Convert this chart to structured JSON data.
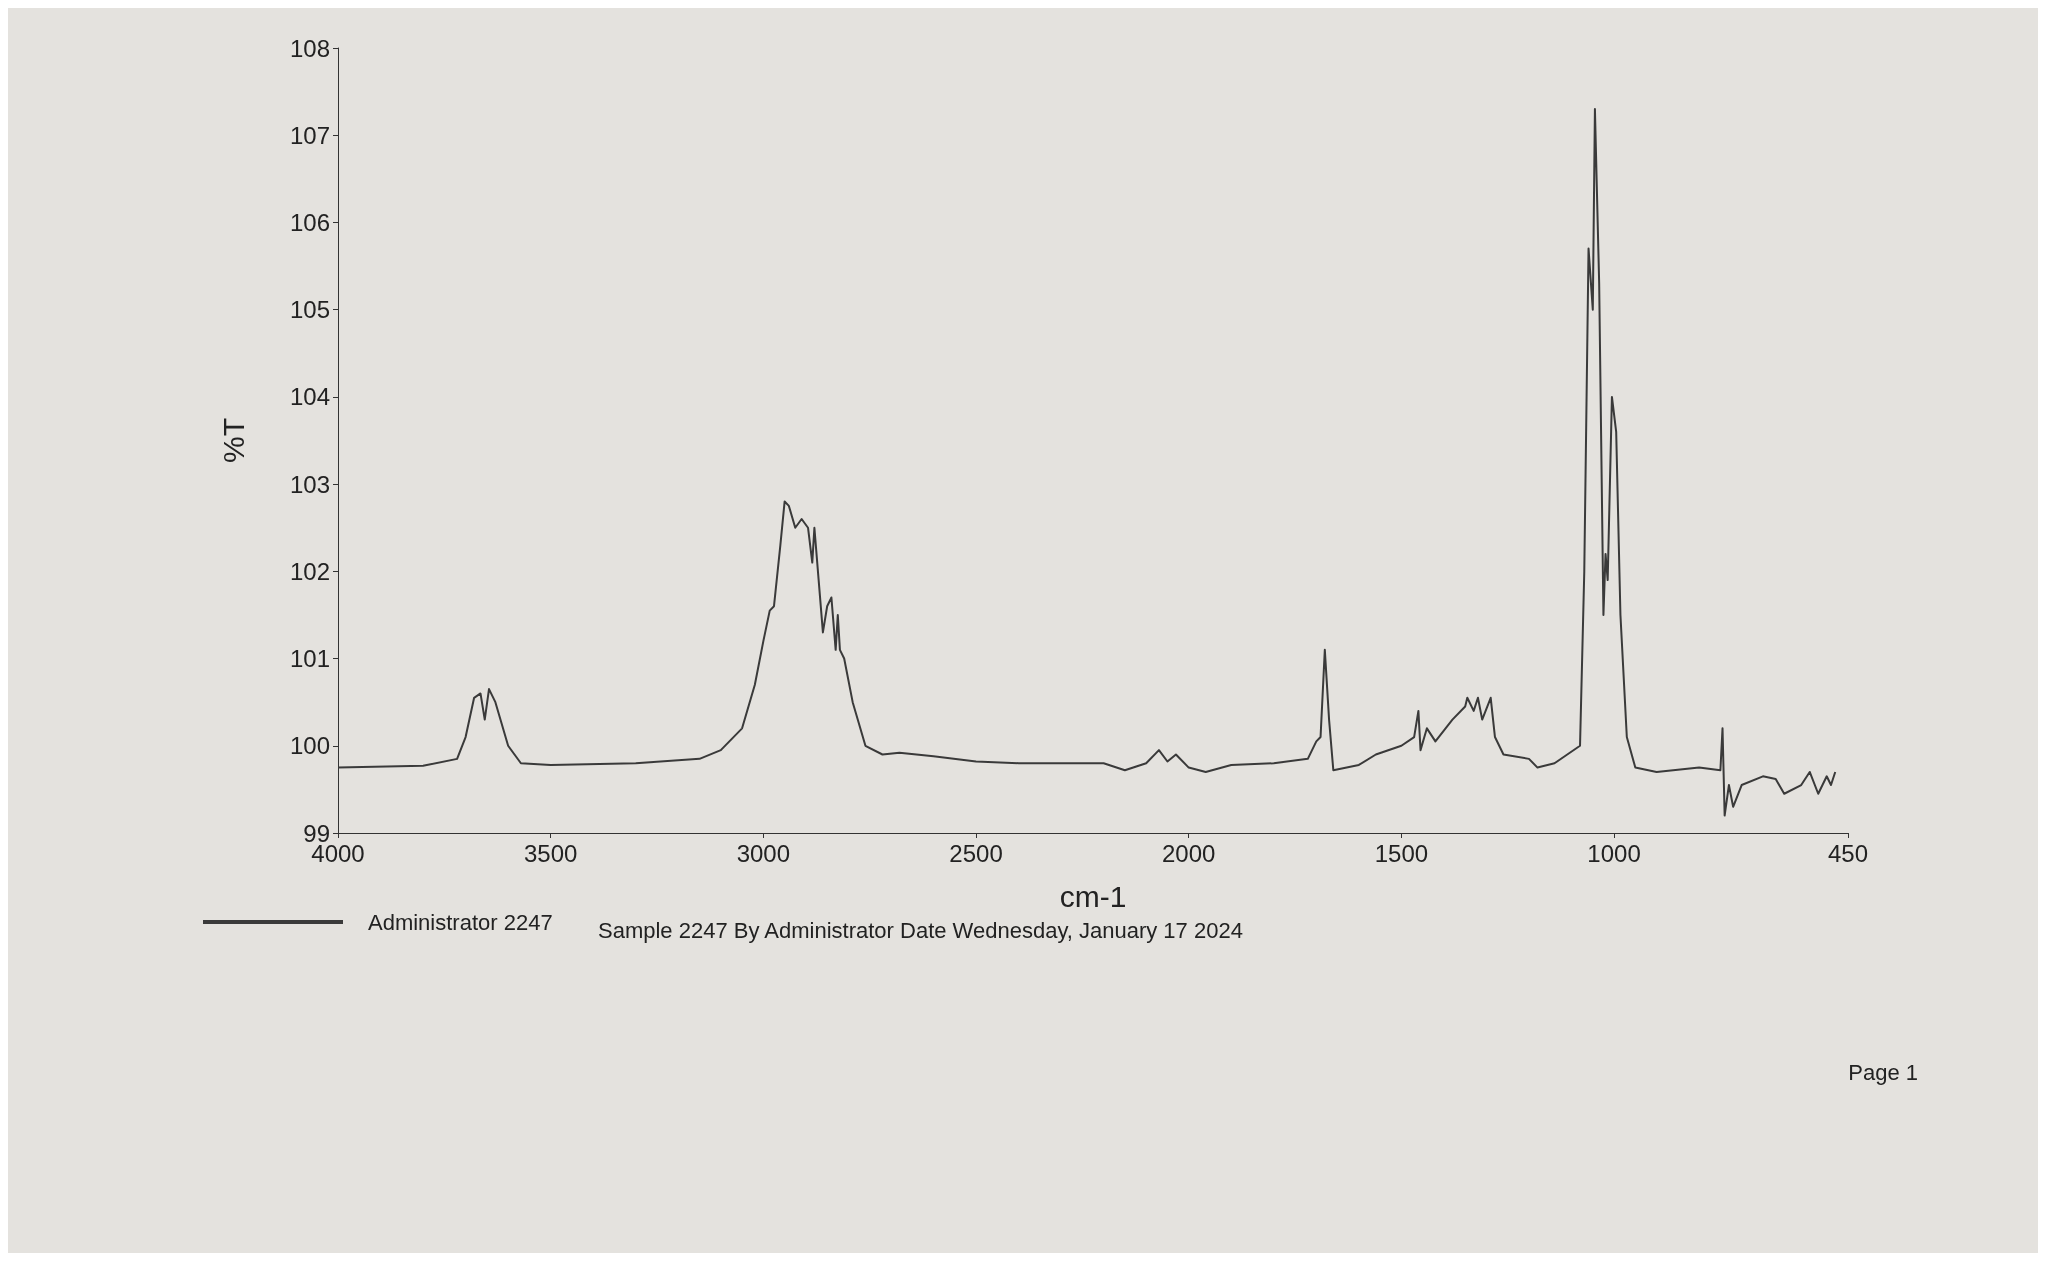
{
  "chart_data": {
    "type": "line",
    "xlabel": "cm-1",
    "ylabel": "%T",
    "x": [
      4000,
      3800,
      3720,
      3700,
      3680,
      3665,
      3655,
      3645,
      3630,
      3600,
      3570,
      3500,
      3300,
      3150,
      3100,
      3050,
      3020,
      3000,
      2985,
      2975,
      2960,
      2950,
      2940,
      2925,
      2910,
      2895,
      2885,
      2880,
      2870,
      2860,
      2850,
      2840,
      2830,
      2825,
      2820,
      2810,
      2790,
      2760,
      2720,
      2680,
      2600,
      2500,
      2400,
      2200,
      2150,
      2100,
      2070,
      2050,
      2030,
      2000,
      1960,
      1900,
      1800,
      1720,
      1700,
      1690,
      1680,
      1670,
      1660,
      1600,
      1560,
      1500,
      1470,
      1460,
      1455,
      1440,
      1420,
      1380,
      1350,
      1345,
      1330,
      1320,
      1310,
      1290,
      1280,
      1260,
      1200,
      1180,
      1140,
      1110,
      1080,
      1070,
      1060,
      1050,
      1045,
      1035,
      1025,
      1020,
      1015,
      1005,
      995,
      985,
      970,
      950,
      900,
      800,
      750,
      745,
      740,
      730,
      720,
      700,
      650,
      620,
      600,
      560,
      540,
      520,
      500,
      490,
      480
    ],
    "series": [
      {
        "name": "Administrator 2247",
        "color": "#3a3a3a",
        "values": [
          99.75,
          99.77,
          99.85,
          100.1,
          100.55,
          100.6,
          100.3,
          100.65,
          100.5,
          100.0,
          99.8,
          99.78,
          99.8,
          99.85,
          99.95,
          100.2,
          100.7,
          101.2,
          101.55,
          101.6,
          102.3,
          102.8,
          102.75,
          102.5,
          102.6,
          102.5,
          102.1,
          102.5,
          101.9,
          101.3,
          101.6,
          101.7,
          101.1,
          101.5,
          101.1,
          101.0,
          100.5,
          100.0,
          99.9,
          99.92,
          99.88,
          99.82,
          99.8,
          99.8,
          99.72,
          99.8,
          99.95,
          99.82,
          99.9,
          99.75,
          99.7,
          99.78,
          99.8,
          99.85,
          100.05,
          100.1,
          101.1,
          100.3,
          99.72,
          99.78,
          99.9,
          100.0,
          100.1,
          100.4,
          99.95,
          100.2,
          100.05,
          100.3,
          100.45,
          100.55,
          100.4,
          100.55,
          100.3,
          100.55,
          100.1,
          99.9,
          99.85,
          99.75,
          99.8,
          99.9,
          100.0,
          102.0,
          105.7,
          105.0,
          107.3,
          105.3,
          101.5,
          102.2,
          101.9,
          104.0,
          103.6,
          101.5,
          100.1,
          99.75,
          99.7,
          99.75,
          99.72,
          100.2,
          99.2,
          99.55,
          99.3,
          99.55,
          99.65,
          99.62,
          99.45,
          99.55,
          99.7,
          99.45,
          99.65,
          99.55,
          99.7
        ]
      }
    ],
    "xlim": [
      4000,
      450
    ],
    "xticks": [
      4000,
      3500,
      3000,
      2500,
      2000,
      1500,
      1000,
      450
    ],
    "ylim": [
      99,
      108
    ],
    "yticks": [
      99,
      100,
      101,
      102,
      103,
      104,
      105,
      106,
      107,
      108
    ],
    "grid": false,
    "legend": "bottom left",
    "marker": "none",
    "line_style": "solid",
    "annotations": [
      "Sample 2247 By Administrator Date Wednesday, January 17 2024",
      "Page 1"
    ]
  }
}
